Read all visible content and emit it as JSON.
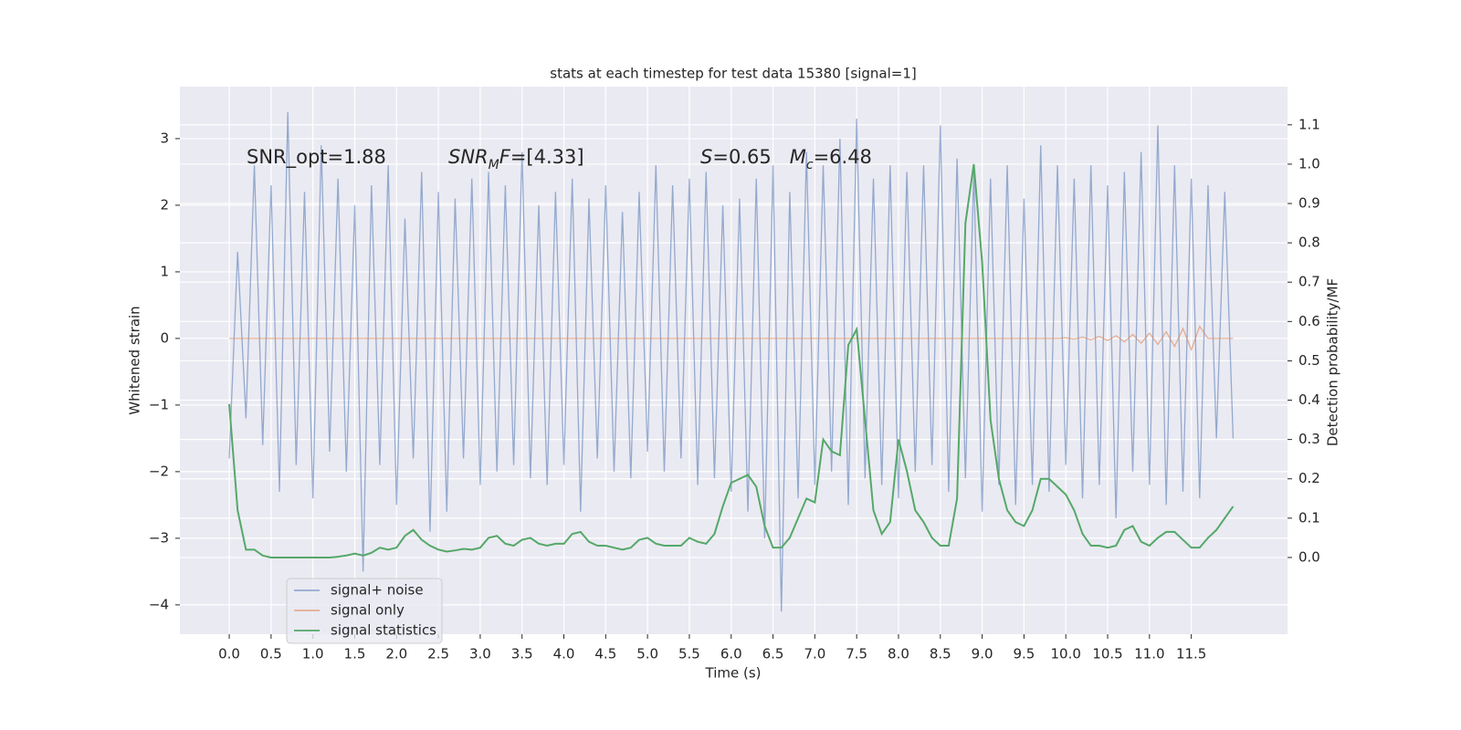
{
  "chart_data": {
    "type": "line",
    "title": "stats at each timestep for test data 15380 [signal=1]",
    "xlabel": "Time (s)",
    "ylabel": "Whitened strain",
    "y2label": "Detection probability/MF",
    "annotations": [
      [
        {
          "text": "SNR_opt=1.88",
          "style": "normal"
        }
      ],
      [
        {
          "text": "SNR",
          "style": "italic"
        },
        {
          "text": "M",
          "style": "italic-sub"
        },
        {
          "text": "F",
          "style": "italic"
        },
        {
          "text": "=[4.33]",
          "style": "normal"
        }
      ],
      [
        {
          "text": "S",
          "style": "italic"
        },
        {
          "text": "=0.65   ",
          "style": "normal"
        },
        {
          "text": "M",
          "style": "italic"
        },
        {
          "text": "c",
          "style": "italic-sub"
        },
        {
          "text": "=6.48",
          "style": "normal"
        }
      ]
    ],
    "x": [
      0,
      0.1,
      0.2,
      0.3,
      0.4,
      0.5,
      0.6,
      0.7,
      0.8,
      0.9,
      1.0,
      1.1,
      1.2,
      1.3,
      1.4,
      1.5,
      1.6,
      1.7,
      1.8,
      1.9,
      2.0,
      2.1,
      2.2,
      2.3,
      2.4,
      2.5,
      2.6,
      2.7,
      2.8,
      2.9,
      3.0,
      3.1,
      3.2,
      3.3,
      3.4,
      3.5,
      3.6,
      3.7,
      3.8,
      3.9,
      4.0,
      4.1,
      4.2,
      4.3,
      4.4,
      4.5,
      4.6,
      4.7,
      4.8,
      4.9,
      5.0,
      5.1,
      5.2,
      5.3,
      5.4,
      5.5,
      5.6,
      5.7,
      5.8,
      5.9,
      6.0,
      6.1,
      6.2,
      6.3,
      6.4,
      6.5,
      6.6,
      6.7,
      6.8,
      6.9,
      7.0,
      7.1,
      7.2,
      7.3,
      7.4,
      7.5,
      7.6,
      7.7,
      7.8,
      7.9,
      8.0,
      8.1,
      8.2,
      8.3,
      8.4,
      8.5,
      8.6,
      8.7,
      8.8,
      8.9,
      9.0,
      9.1,
      9.2,
      9.3,
      9.4,
      9.5,
      9.6,
      9.7,
      9.8,
      9.9,
      10.0,
      10.1,
      10.2,
      10.3,
      10.4,
      10.5,
      10.6,
      10.7,
      10.8,
      10.9,
      11.0,
      11.1,
      11.2,
      11.3,
      11.4,
      11.5,
      11.6,
      11.7,
      11.8,
      11.9,
      12.0
    ],
    "series": [
      {
        "name": "signal+ noise",
        "color": "#4c72b0",
        "opacity": 0.55,
        "axis": "y",
        "values": [
          -1.8,
          1.3,
          -1.2,
          2.6,
          -1.6,
          2.3,
          -2.3,
          3.4,
          -1.9,
          2.2,
          -2.4,
          2.9,
          -1.7,
          2.4,
          -2.0,
          2.0,
          -3.5,
          2.3,
          -1.9,
          2.6,
          -2.5,
          1.8,
          -1.8,
          2.5,
          -2.9,
          2.2,
          -2.6,
          2.1,
          -1.8,
          2.4,
          -2.2,
          2.5,
          -2.0,
          2.3,
          -1.9,
          2.8,
          -2.1,
          2.0,
          -2.2,
          2.2,
          -1.9,
          2.4,
          -2.6,
          2.1,
          -1.8,
          2.3,
          -2.0,
          1.9,
          -2.1,
          2.2,
          -1.7,
          2.6,
          -2.0,
          2.3,
          -1.8,
          2.4,
          -2.2,
          2.5,
          -2.1,
          2.0,
          -2.3,
          2.1,
          -2.6,
          2.4,
          -3.0,
          2.6,
          -4.1,
          2.2,
          -2.4,
          2.8,
          -2.2,
          2.6,
          -2.0,
          3.0,
          -2.5,
          3.3,
          -2.1,
          2.4,
          -2.2,
          2.6,
          -2.4,
          2.5,
          -2.0,
          2.6,
          -1.9,
          3.2,
          -2.3,
          2.7,
          -2.1,
          2.5,
          -2.6,
          2.4,
          -2.2,
          2.6,
          -2.5,
          2.1,
          -2.2,
          2.9,
          -2.3,
          2.6,
          -1.9,
          2.4,
          -2.4,
          2.6,
          -2.2,
          2.3,
          -2.7,
          2.5,
          -2.0,
          2.8,
          -2.2,
          3.2,
          -2.5,
          2.6,
          -2.3,
          2.4,
          -2.4,
          2.3,
          -1.5,
          2.2,
          -1.5
        ]
      },
      {
        "name": "signal only",
        "color": "#dd8452",
        "opacity": 0.6,
        "axis": "y",
        "values": [
          0,
          0,
          0,
          0,
          0,
          0,
          0,
          0,
          0,
          0,
          0,
          0,
          0,
          0,
          0,
          0,
          0,
          0,
          0,
          0,
          0,
          0,
          0,
          0,
          0,
          0,
          0,
          0,
          0,
          0,
          0,
          0,
          0,
          0,
          0,
          0,
          0,
          0,
          0,
          0,
          0,
          0,
          0,
          0,
          0,
          0,
          0,
          0,
          0,
          0,
          0,
          0,
          0,
          0,
          0,
          0,
          0,
          0,
          0,
          0,
          0,
          0,
          0,
          0,
          0,
          0,
          0,
          0,
          0,
          0,
          0,
          0,
          0,
          0,
          0,
          0,
          0,
          0,
          0,
          0,
          0,
          0,
          0,
          0,
          0,
          0,
          0,
          0,
          0,
          0,
          0,
          0,
          0,
          0,
          0,
          0,
          0,
          0,
          0,
          0,
          0.01,
          -0.01,
          0.02,
          -0.02,
          0.03,
          -0.03,
          0.04,
          -0.05,
          0.06,
          -0.07,
          0.08,
          -0.09,
          0.1,
          -0.12,
          0.15,
          -0.17,
          0.18,
          0,
          0,
          0,
          0
        ]
      },
      {
        "name": "signal statistics",
        "color": "#55a868",
        "opacity": 1,
        "axis": "y2",
        "values": [
          0.39,
          0.12,
          0.02,
          0.02,
          0.005,
          0,
          0,
          0,
          0,
          0,
          0,
          0,
          0,
          0.002,
          0.005,
          0.01,
          0.005,
          0.012,
          0.025,
          0.02,
          0.025,
          0.055,
          0.07,
          0.045,
          0.03,
          0.02,
          0.015,
          0.018,
          0.022,
          0.02,
          0.025,
          0.05,
          0.055,
          0.035,
          0.03,
          0.045,
          0.05,
          0.035,
          0.03,
          0.035,
          0.035,
          0.06,
          0.065,
          0.04,
          0.03,
          0.03,
          0.025,
          0.02,
          0.025,
          0.045,
          0.05,
          0.035,
          0.03,
          0.03,
          0.03,
          0.05,
          0.04,
          0.035,
          0.06,
          0.13,
          0.19,
          0.2,
          0.21,
          0.18,
          0.08,
          0.025,
          0.025,
          0.05,
          0.1,
          0.15,
          0.14,
          0.3,
          0.27,
          0.26,
          0.54,
          0.58,
          0.35,
          0.12,
          0.06,
          0.09,
          0.3,
          0.22,
          0.12,
          0.09,
          0.05,
          0.03,
          0.03,
          0.15,
          0.85,
          1.0,
          0.75,
          0.35,
          0.2,
          0.12,
          0.09,
          0.08,
          0.12,
          0.2,
          0.2,
          0.18,
          0.16,
          0.12,
          0.06,
          0.03,
          0.03,
          0.025,
          0.03,
          0.07,
          0.08,
          0.04,
          0.03,
          0.05,
          0.065,
          0.065,
          0.045,
          0.025,
          0.025,
          0.05,
          0.07,
          0.1,
          0.13
        ]
      }
    ],
    "xlim": [
      -0.59,
      12.65
    ],
    "ylim": [
      -4.44,
      3.78
    ],
    "y2lim": [
      -0.195,
      1.197
    ],
    "xticks": [
      {
        "value": 0,
        "label": "0.0"
      },
      {
        "value": 0.5,
        "label": "0.5"
      },
      {
        "value": 1,
        "label": "1.0"
      },
      {
        "value": 1.5,
        "label": "1.5"
      },
      {
        "value": 2,
        "label": "2.0"
      },
      {
        "value": 2.5,
        "label": "2.5"
      },
      {
        "value": 3,
        "label": "3.0"
      },
      {
        "value": 3.5,
        "label": "3.5"
      },
      {
        "value": 4,
        "label": "4.0"
      },
      {
        "value": 4.5,
        "label": "4.5"
      },
      {
        "value": 5,
        "label": "5.0"
      },
      {
        "value": 5.5,
        "label": "5.5"
      },
      {
        "value": 6,
        "label": "6.0"
      },
      {
        "value": 6.5,
        "label": "6.5"
      },
      {
        "value": 7,
        "label": "7.0"
      },
      {
        "value": 7.5,
        "label": "7.5"
      },
      {
        "value": 8,
        "label": "8.0"
      },
      {
        "value": 8.5,
        "label": "8.5"
      },
      {
        "value": 9,
        "label": "9.0"
      },
      {
        "value": 9.5,
        "label": "9.5"
      },
      {
        "value": 10,
        "label": "10.0"
      },
      {
        "value": 10.5,
        "label": "10.5"
      },
      {
        "value": 11,
        "label": "11.0"
      },
      {
        "value": 11.5,
        "label": "11.5"
      }
    ],
    "yticks": [
      {
        "value": -4,
        "label": "−4"
      },
      {
        "value": -3,
        "label": "−3"
      },
      {
        "value": -2,
        "label": "−2"
      },
      {
        "value": -1,
        "label": "−1"
      },
      0,
      1,
      2,
      3
    ],
    "y2ticks": [
      {
        "value": 0,
        "label": "0.0"
      },
      {
        "value": 0.1,
        "label": "0.1"
      },
      {
        "value": 0.2,
        "label": "0.2"
      },
      {
        "value": 0.3,
        "label": "0.3"
      },
      {
        "value": 0.4,
        "label": "0.4"
      },
      {
        "value": 0.5,
        "label": "0.5"
      },
      {
        "value": 0.6,
        "label": "0.6"
      },
      {
        "value": 0.7,
        "label": "0.7"
      },
      {
        "value": 0.8,
        "label": "0.8"
      },
      {
        "value": 0.9,
        "label": "0.9"
      },
      {
        "value": 1,
        "label": "1.0"
      },
      {
        "value": 1.1,
        "label": "1.1"
      }
    ],
    "grid": true,
    "background": "#eaeaf2",
    "legend_loc": "lower left"
  }
}
